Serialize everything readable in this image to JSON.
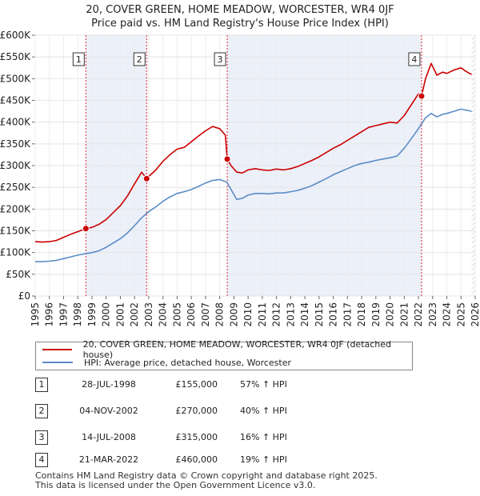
{
  "chart_data": {
    "type": "line",
    "title": "20, COVER GREEN, HOME MEADOW, WORCESTER, WR4 0JF",
    "subtitle": "Price paid vs. HM Land Registry's House Price Index (HPI)",
    "xlim": [
      1995.0,
      2026.0
    ],
    "ylim": [
      0,
      600000
    ],
    "x_ticks": [
      1995,
      1996,
      1997,
      1998,
      1999,
      2000,
      2001,
      2002,
      2003,
      2004,
      2005,
      2006,
      2007,
      2008,
      2009,
      2010,
      2011,
      2012,
      2013,
      2014,
      2015,
      2016,
      2017,
      2018,
      2019,
      2020,
      2021,
      2022,
      2023,
      2024,
      2025,
      2026
    ],
    "y_ticks": [
      {
        "value": 0,
        "label": "£0"
      },
      {
        "value": 50000,
        "label": "£50K"
      },
      {
        "value": 100000,
        "label": "£100K"
      },
      {
        "value": 150000,
        "label": "£150K"
      },
      {
        "value": 200000,
        "label": "£200K"
      },
      {
        "value": 250000,
        "label": "£250K"
      },
      {
        "value": 300000,
        "label": "£300K"
      },
      {
        "value": 350000,
        "label": "£350K"
      },
      {
        "value": 400000,
        "label": "£400K"
      },
      {
        "value": 450000,
        "label": "£450K"
      },
      {
        "value": 500000,
        "label": "£500K"
      },
      {
        "value": 550000,
        "label": "£550K"
      },
      {
        "value": 600000,
        "label": "£600K"
      }
    ],
    "series": [
      {
        "name": "20, COVER GREEN, HOME MEADOW, WORCESTER, WR4 0JF (detached house)",
        "color": "#cc0000",
        "x": [
          1995.0,
          1995.5,
          1996.0,
          1996.5,
          1997.0,
          1997.5,
          1998.0,
          1998.57,
          1999.0,
          1999.5,
          2000.0,
          2000.5,
          2001.0,
          2001.5,
          2002.0,
          2002.5,
          2002.85,
          2003.0,
          2003.5,
          2004.0,
          2004.5,
          2005.0,
          2005.5,
          2006.0,
          2006.5,
          2007.0,
          2007.5,
          2008.0,
          2008.4,
          2008.53,
          2008.8,
          2009.2,
          2009.6,
          2010.0,
          2010.5,
          2011.0,
          2011.5,
          2012.0,
          2012.5,
          2013.0,
          2013.5,
          2014.0,
          2014.5,
          2015.0,
          2015.5,
          2016.0,
          2016.5,
          2017.0,
          2017.5,
          2018.0,
          2018.5,
          2019.0,
          2019.5,
          2020.0,
          2020.5,
          2021.0,
          2021.5,
          2022.0,
          2022.22,
          2022.5,
          2022.9,
          2023.3,
          2023.7,
          2024.0,
          2024.5,
          2025.0,
          2025.3,
          2025.6,
          2025.75
        ],
        "values": [
          125000,
          124000,
          125000,
          128000,
          135000,
          142000,
          148000,
          155000,
          158000,
          165000,
          176000,
          192000,
          208000,
          230000,
          258000,
          285000,
          270000,
          275000,
          290000,
          310000,
          325000,
          338000,
          342000,
          355000,
          368000,
          380000,
          390000,
          385000,
          370000,
          315000,
          300000,
          285000,
          283000,
          290000,
          293000,
          290000,
          289000,
          292000,
          290000,
          293000,
          298000,
          305000,
          312000,
          320000,
          330000,
          340000,
          348000,
          358000,
          368000,
          378000,
          388000,
          392000,
          396000,
          400000,
          398000,
          415000,
          440000,
          465000,
          460000,
          500000,
          535000,
          508000,
          515000,
          512000,
          520000,
          525000,
          518000,
          512000,
          510000
        ]
      },
      {
        "name": "HPI: Average price, detached house, Worcester",
        "color": "#5b8cc6",
        "x": [
          1995.0,
          1995.5,
          1996.0,
          1996.5,
          1997.0,
          1997.5,
          1998.0,
          1998.5,
          1999.0,
          1999.5,
          2000.0,
          2000.5,
          2001.0,
          2001.5,
          2002.0,
          2002.5,
          2003.0,
          2003.5,
          2004.0,
          2004.5,
          2005.0,
          2005.5,
          2006.0,
          2006.5,
          2007.0,
          2007.5,
          2008.0,
          2008.5,
          2008.8,
          2009.2,
          2009.6,
          2010.0,
          2010.5,
          2011.0,
          2011.5,
          2012.0,
          2012.5,
          2013.0,
          2013.5,
          2014.0,
          2014.5,
          2015.0,
          2015.5,
          2016.0,
          2016.5,
          2017.0,
          2017.5,
          2018.0,
          2018.5,
          2019.0,
          2019.5,
          2020.0,
          2020.5,
          2021.0,
          2021.5,
          2022.0,
          2022.5,
          2022.9,
          2023.3,
          2023.7,
          2024.0,
          2024.5,
          2025.0,
          2025.3,
          2025.6,
          2025.75
        ],
        "values": [
          79000,
          79000,
          80000,
          82000,
          86000,
          90000,
          94000,
          97000,
          100000,
          104000,
          112000,
          122000,
          132000,
          145000,
          162000,
          180000,
          194000,
          205000,
          218000,
          228000,
          236000,
          240000,
          245000,
          252000,
          260000,
          266000,
          268000,
          262000,
          245000,
          222000,
          225000,
          232000,
          236000,
          236000,
          235000,
          237000,
          237000,
          240000,
          243000,
          248000,
          254000,
          262000,
          270000,
          279000,
          286000,
          293000,
          300000,
          305000,
          308000,
          312000,
          315000,
          318000,
          322000,
          340000,
          362000,
          385000,
          410000,
          420000,
          412000,
          418000,
          420000,
          425000,
          430000,
          428000,
          426000,
          425000
        ]
      }
    ],
    "sales": [
      {
        "num": "1",
        "x": 1998.57,
        "value": 155000
      },
      {
        "num": "2",
        "x": 2002.85,
        "value": 270000
      },
      {
        "num": "3",
        "x": 2008.53,
        "value": 315000
      },
      {
        "num": "4",
        "x": 2022.22,
        "value": 460000
      }
    ],
    "data_end": 2025.75
  },
  "legend": {
    "property_label": "20, COVER GREEN, HOME MEADOW, WORCESTER, WR4 0JF (detached house)",
    "hpi_label": "HPI: Average price, detached house, Worcester",
    "property_color": "#cc0000",
    "hpi_color": "#5b8cc6"
  },
  "transactions": [
    {
      "num": "1",
      "date": "28-JUL-1998",
      "price": "£155,000",
      "hpi": "57% ↑ HPI"
    },
    {
      "num": "2",
      "date": "04-NOV-2002",
      "price": "£270,000",
      "hpi": "40% ↑ HPI"
    },
    {
      "num": "3",
      "date": "14-JUL-2008",
      "price": "£315,000",
      "hpi": "16% ↑ HPI"
    },
    {
      "num": "4",
      "date": "21-MAR-2022",
      "price": "£460,000",
      "hpi": "19% ↑ HPI"
    }
  ],
  "footer": {
    "line1": "Contains HM Land Registry data © Crown copyright and database right 2025.",
    "line2": "This data is licensed under the Open Government Licence v3.0."
  }
}
